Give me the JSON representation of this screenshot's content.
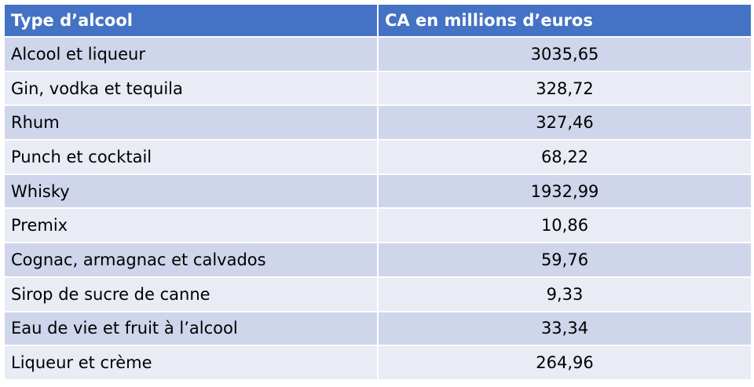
{
  "table": {
    "header": [
      "Type d’alcool",
      "CA en millions d’euros"
    ],
    "rows": [
      [
        "Alcool et liqueur",
        "3035,65"
      ],
      [
        "Gin, vodka et tequila",
        "328,72"
      ],
      [
        "Rhum",
        "327,46"
      ],
      [
        "Punch et cocktail",
        "68,22"
      ],
      [
        "Whisky",
        "1932,99"
      ],
      [
        "Premix",
        "10,86"
      ],
      [
        "Cognac, armagnac et calvados",
        "59,76"
      ],
      [
        "Sirop de sucre de canne",
        "9,33"
      ],
      [
        "Eau de vie et fruit à l’alcool",
        "33,34"
      ],
      [
        "Liqueur et crème",
        "264,96"
      ]
    ]
  }
}
